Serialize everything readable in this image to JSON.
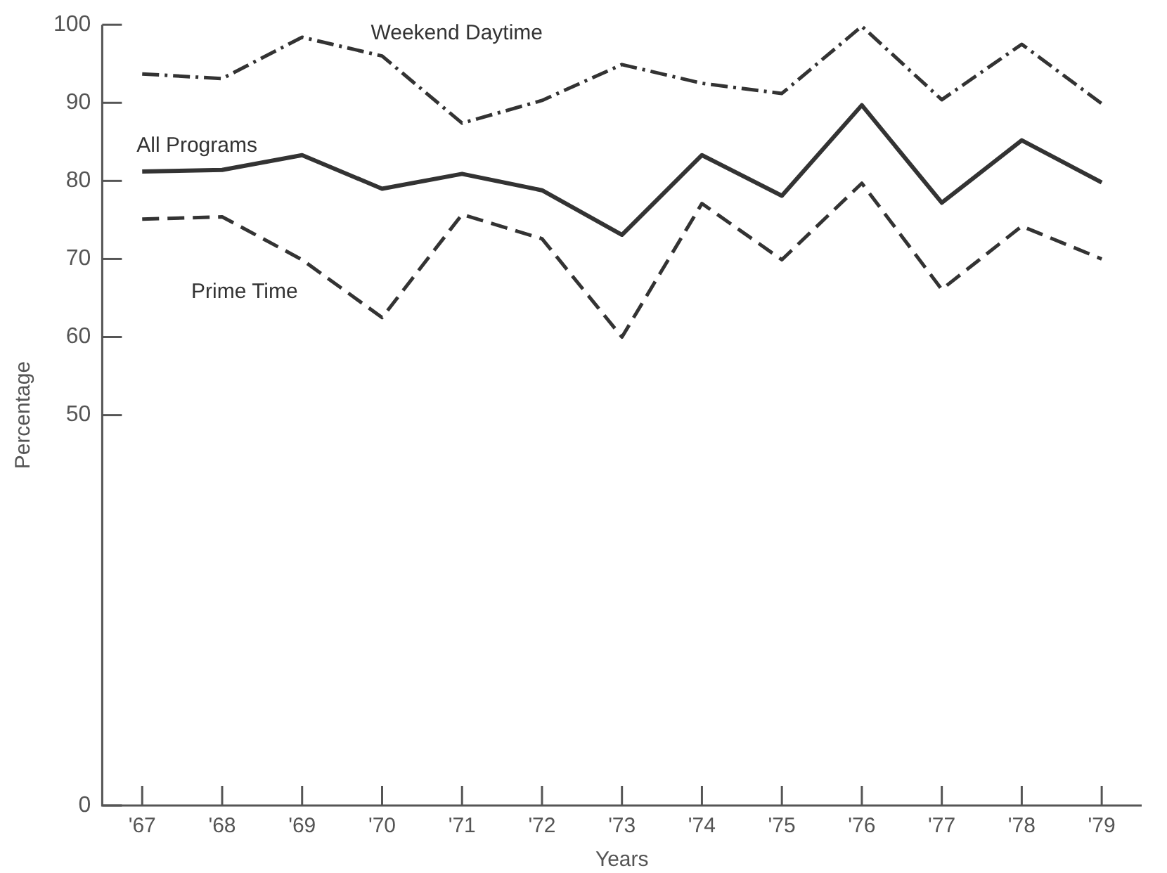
{
  "chart_data": {
    "type": "line",
    "xlabel": "Years",
    "ylabel": "Percentage",
    "categories": [
      "'67",
      "'68",
      "'69",
      "'70",
      "'71",
      "'72",
      "'73",
      "'74",
      "'75",
      "'76",
      "'77",
      "'78",
      "'79"
    ],
    "series": [
      {
        "name": "Weekend Daytime",
        "color": "#333333",
        "line_style": "dashdot",
        "values": [
          93.7,
          93.1,
          98.4,
          96.0,
          87.4,
          90.3,
          94.9,
          92.5,
          91.2,
          99.8,
          90.4,
          97.5,
          89.9
        ]
      },
      {
        "name": "All Programs",
        "color": "#333333",
        "line_style": "solid",
        "values": [
          81.2,
          81.4,
          83.3,
          79.0,
          80.9,
          78.8,
          73.1,
          83.3,
          78.1,
          89.7,
          77.2,
          85.2,
          79.8
        ]
      },
      {
        "name": "Prime Time",
        "color": "#333333",
        "line_style": "dashed",
        "values": [
          75.1,
          75.4,
          69.9,
          62.5,
          75.7,
          72.6,
          60.0,
          77.1,
          69.9,
          79.7,
          66.1,
          74.2,
          70.0
        ]
      }
    ],
    "ylim": [
      0,
      100
    ],
    "yticks": [
      0,
      50,
      60,
      70,
      80,
      90,
      100
    ],
    "grid": false,
    "legend": false,
    "marker": "none"
  }
}
